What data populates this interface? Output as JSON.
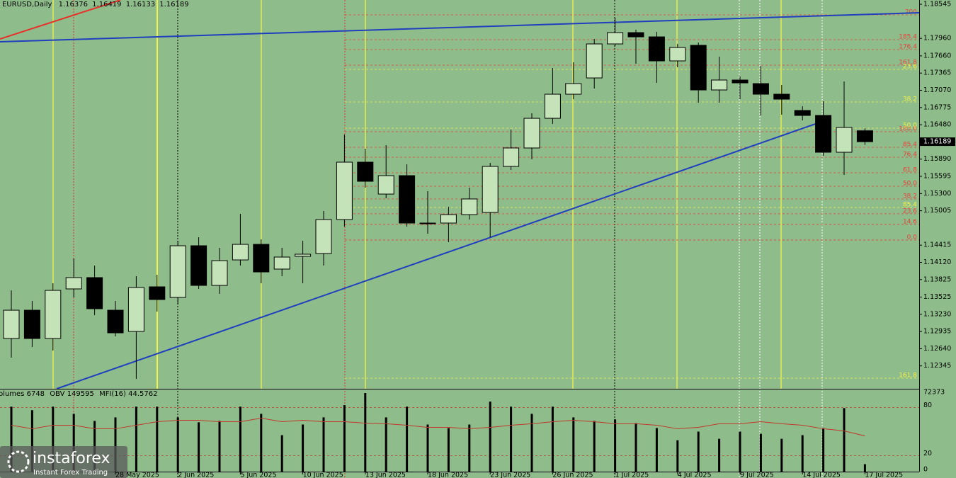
{
  "chart_data": {
    "type": "candlestick",
    "title": "EURUSD,Daily",
    "ylim": [
      1.11953,
      1.18618
    ],
    "yticks": [
      1.18545,
      {
        "value": 1.1796,
        "label": "1.17960"
      },
      {
        "value": 1.1766,
        "label": "1.17660"
      },
      1.17365,
      {
        "value": 1.1707,
        "label": "1.17070"
      },
      1.16775,
      {
        "value": 1.1648,
        "label": "1.16480"
      },
      {
        "value": 1.1589,
        "label": "1.15890"
      },
      1.15595,
      {
        "value": 1.153,
        "label": "1.15300"
      },
      1.15005,
      1.14415,
      {
        "value": 1.1412,
        "label": "1.14120"
      },
      1.13825,
      1.13525,
      {
        "value": 1.1323,
        "label": "1.13230"
      },
      1.12935,
      {
        "value": 1.1264,
        "label": "1.12640"
      },
      1.12345
    ],
    "bull_color": "#c4e3b8",
    "bear_color": "#000000",
    "categories": [
      null,
      null,
      null,
      null,
      null,
      "28 May 2025",
      null,
      null,
      "2 Jun 2025",
      null,
      null,
      "5 Jun 2025",
      null,
      null,
      "10 Jun 2025",
      null,
      null,
      "13 Jun 2025",
      null,
      null,
      "18 Jun 2025",
      null,
      null,
      "23 Jun 2025",
      null,
      null,
      "26 Jun 2025",
      null,
      null,
      "1 Jul 2025",
      null,
      null,
      "4 Jul 2025",
      null,
      null,
      "9 Jul 2025",
      null,
      null,
      "14 Jul 2025",
      null,
      null,
      "17 Jul 2025"
    ],
    "candles": [
      {
        "open": 1.12815,
        "high": 1.1364,
        "low": 1.12487,
        "close": 1.133
      },
      {
        "open": 1.133,
        "high": 1.13458,
        "low": 1.12669,
        "close": 1.12815
      },
      {
        "open": 1.12815,
        "high": 1.13762,
        "low": 1.12608,
        "close": 1.1364
      },
      {
        "open": 1.13665,
        "high": 1.14187,
        "low": 1.13519,
        "close": 1.13859
      },
      {
        "open": 1.13859,
        "high": 1.14065,
        "low": 1.13216,
        "close": 1.13325
      },
      {
        "open": 1.133,
        "high": 1.13458,
        "low": 1.12851,
        "close": 1.12912
      },
      {
        "open": 1.12936,
        "high": 1.13883,
        "low": 1.12123,
        "close": 1.13689
      },
      {
        "open": 1.13701,
        "high": 1.13908,
        "low": 1.13276,
        "close": 1.13483
      },
      {
        "open": 1.13519,
        "high": 1.1449,
        "low": 1.13398,
        "close": 1.14405
      },
      {
        "open": 1.14405,
        "high": 1.14551,
        "low": 1.13665,
        "close": 1.13725
      },
      {
        "open": 1.13725,
        "high": 1.14369,
        "low": 1.1358,
        "close": 1.1415
      },
      {
        "open": 1.14162,
        "high": 1.14952,
        "low": 1.14065,
        "close": 1.14429
      },
      {
        "open": 1.14429,
        "high": 1.14514,
        "low": 1.13762,
        "close": 1.13956
      },
      {
        "open": 1.14005,
        "high": 1.14369,
        "low": 1.13883,
        "close": 1.14211
      },
      {
        "open": 1.14223,
        "high": 1.1449,
        "low": 1.13762,
        "close": 1.1426
      },
      {
        "open": 1.14272,
        "high": 1.15,
        "low": 1.14065,
        "close": 1.14854
      },
      {
        "open": 1.14854,
        "high": 1.16311,
        "low": 1.14733,
        "close": 1.15838
      },
      {
        "open": 1.15838,
        "high": 1.16068,
        "low": 1.15401,
        "close": 1.1551
      },
      {
        "open": 1.15291,
        "high": 1.16129,
        "low": 1.15219,
        "close": 1.15607
      },
      {
        "open": 1.15607,
        "high": 1.15801,
        "low": 1.14733,
        "close": 1.14794
      },
      {
        "open": 1.14794,
        "high": 1.1534,
        "low": 1.14612,
        "close": 1.14794
      },
      {
        "open": 1.14794,
        "high": 1.15073,
        "low": 1.14466,
        "close": 1.14939
      },
      {
        "open": 1.14939,
        "high": 1.15401,
        "low": 1.14854,
        "close": 1.15207
      },
      {
        "open": 1.14976,
        "high": 1.15826,
        "low": 1.14551,
        "close": 1.15765
      },
      {
        "open": 1.15765,
        "high": 1.16396,
        "low": 1.15704,
        "close": 1.16081
      },
      {
        "open": 1.16081,
        "high": 1.16675,
        "low": 1.15886,
        "close": 1.1659
      },
      {
        "open": 1.1659,
        "high": 1.17452,
        "low": 1.16493,
        "close": 1.17003
      },
      {
        "open": 1.17003,
        "high": 1.1755,
        "low": 1.16918,
        "close": 1.17185
      },
      {
        "open": 1.17282,
        "high": 1.1795,
        "low": 1.171,
        "close": 1.17865
      },
      {
        "open": 1.17865,
        "high": 1.18314,
        "low": 1.17829,
        "close": 1.18059
      },
      {
        "open": 1.18059,
        "high": 1.18108,
        "low": 1.17525,
        "close": 1.17986
      },
      {
        "open": 1.17986,
        "high": 1.18072,
        "low": 1.17197,
        "close": 1.17574
      },
      {
        "open": 1.17574,
        "high": 1.17865,
        "low": 1.17465,
        "close": 1.17804
      },
      {
        "open": 1.17841,
        "high": 1.17889,
        "low": 1.16858,
        "close": 1.17076
      },
      {
        "open": 1.17076,
        "high": 1.17647,
        "low": 1.16858,
        "close": 1.17246
      },
      {
        "open": 1.17246,
        "high": 1.17307,
        "low": 1.16918,
        "close": 1.17197
      },
      {
        "open": 1.17185,
        "high": 1.17489,
        "low": 1.16639,
        "close": 1.17003
      },
      {
        "open": 1.17003,
        "high": 1.17161,
        "low": 1.16651,
        "close": 1.16918
      },
      {
        "open": 1.16724,
        "high": 1.16797,
        "low": 1.16554,
        "close": 1.16639
      },
      {
        "open": 1.16639,
        "high": 1.16882,
        "low": 1.15947,
        "close": 1.16008
      },
      {
        "open": 1.16008,
        "high": 1.17222,
        "low": 1.15619,
        "close": 1.16433
      },
      {
        "open": 1.16376,
        "high": 1.16419,
        "low": 1.16133,
        "close": 1.16189
      }
    ],
    "fib_levels": [
      {
        "label": "200",
        "price": 1.18363,
        "color": "#e8403a"
      },
      {
        "label": "185.4",
        "price": 1.17938,
        "color": "#e8403a"
      },
      {
        "label": "176.4",
        "price": 1.17768,
        "color": "#e8403a"
      },
      {
        "label": "161.8",
        "price": 1.17501,
        "color": "#e8403a"
      },
      {
        "label": "100.0",
        "price": 1.1636,
        "color": "#e8403a"
      },
      {
        "label": "85.4",
        "price": 1.16093,
        "color": "#e8403a"
      },
      {
        "label": "76.4",
        "price": 1.15923,
        "color": "#e8403a"
      },
      {
        "label": "61.8",
        "price": 1.15656,
        "color": "#e8403a"
      },
      {
        "label": "50.0",
        "price": 1.15425,
        "color": "#e8403a"
      },
      {
        "label": "38.2",
        "price": 1.15207,
        "color": "#e8403a"
      },
      {
        "label": "23.6",
        "price": 1.14953,
        "color": "#e8403a"
      },
      {
        "label": "14.6",
        "price": 1.1477,
        "color": "#e8403a"
      },
      {
        "label": "0.0",
        "price": 1.14503,
        "color": "#e8403a"
      },
      {
        "label": "23.6",
        "price": 1.17428,
        "color": "#f2f24a"
      },
      {
        "label": "38.2",
        "price": 1.1687,
        "color": "#f2f24a"
      },
      {
        "label": "50.0",
        "price": 1.16421,
        "color": "#f2f24a"
      },
      {
        "label": "85.4",
        "price": 1.15061,
        "color": "#f2f24a"
      },
      {
        "label": "161.8",
        "price": 1.12135,
        "color": "#f2f24a"
      }
    ],
    "volume": {
      "name": "Volumes",
      "color": "#000000",
      "ylim": [
        0,
        72373
      ],
      "yticks": [
        72373
      ],
      "values": [
        58800,
        55600,
        58800,
        52300,
        45900,
        49100,
        58800,
        58800,
        49100,
        44600,
        45900,
        58800,
        52300,
        33000,
        42600,
        49100,
        60100,
        71100,
        49100,
        58800,
        42600,
        39400,
        42600,
        63300,
        58800,
        52300,
        58800,
        49100,
        45900,
        47200,
        43900,
        39400,
        28400,
        36200,
        29700,
        36200,
        34200,
        29700,
        33000,
        39400,
        57500,
        6748
      ]
    },
    "obv": {
      "name": "OBV",
      "value": 149595
    },
    "mfi": {
      "name": "MFI(16)",
      "color": "#c0392b",
      "ylim": [
        0,
        100
      ],
      "yticks": [
        0,
        20,
        80
      ],
      "values": [
        58.0,
        53.6,
        58.0,
        58.0,
        53.6,
        53.6,
        58.0,
        62.4,
        64.2,
        64.2,
        62.4,
        62.4,
        66.8,
        62.4,
        64.2,
        62.4,
        62.4,
        60.6,
        59.8,
        58.0,
        55.3,
        55.3,
        53.6,
        55.3,
        58.0,
        59.8,
        62.4,
        64.2,
        62.4,
        59.8,
        59.8,
        58.0,
        53.6,
        55.3,
        59.8,
        59.8,
        62.4,
        59.8,
        58.0,
        53.6,
        50.9,
        44.5762
      ]
    }
  },
  "watermark": {
    "name": "instaforex",
    "tagline": "Instant Forex Trading"
  }
}
